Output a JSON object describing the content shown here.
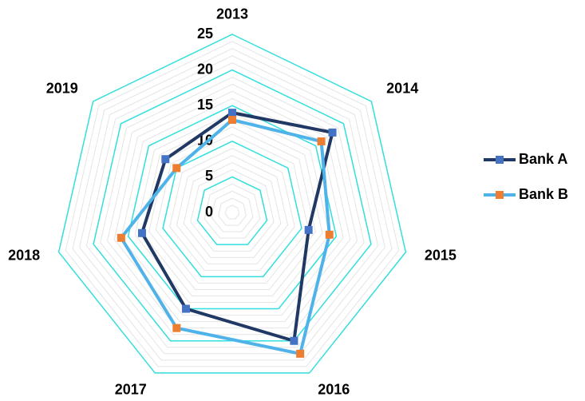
{
  "chart_data": {
    "type": "radar",
    "categories": [
      "2013",
      "2014",
      "2015",
      "2016",
      "2017",
      "2018",
      "2019"
    ],
    "series": [
      {
        "name": "Bank A",
        "color": "#203864",
        "marker_color": "#4472c4",
        "values": [
          14,
          18,
          11,
          20,
          15,
          13,
          12
        ]
      },
      {
        "name": "Bank B",
        "color": "#4fb3ea",
        "marker_color": "#ed7d31",
        "values": [
          13,
          16,
          14,
          22,
          18,
          16,
          10
        ]
      }
    ],
    "ylim": [
      0,
      25
    ],
    "yticks": [
      0,
      5,
      10,
      15,
      20,
      25
    ],
    "grid": true,
    "legend": "right"
  }
}
